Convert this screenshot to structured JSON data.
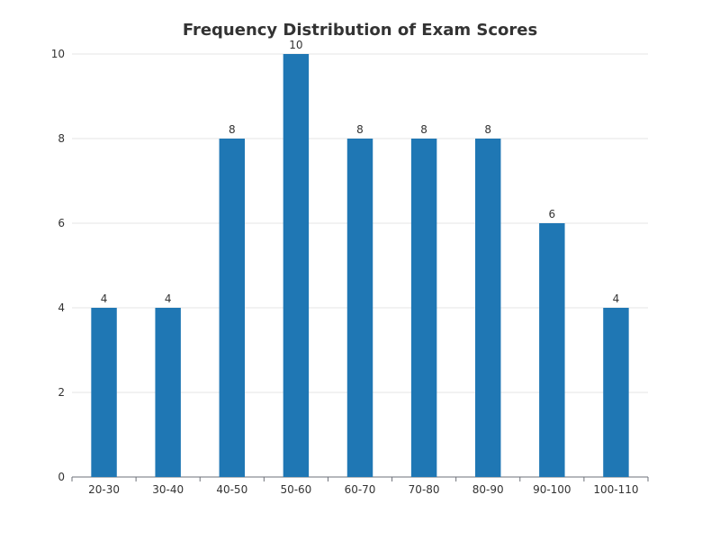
{
  "chart_data": {
    "type": "bar",
    "title": "Frequency Distribution of Exam Scores",
    "xlabel": "",
    "ylabel": "",
    "categories": [
      "20-30",
      "30-40",
      "40-50",
      "50-60",
      "60-70",
      "70-80",
      "80-90",
      "90-100",
      "100-110"
    ],
    "values": [
      4,
      4,
      8,
      10,
      8,
      8,
      8,
      6,
      4
    ],
    "ylim": [
      0,
      10
    ],
    "yticks": [
      0,
      2,
      4,
      6,
      8,
      10
    ],
    "grid": true,
    "show_data_labels": true,
    "colors": {
      "bar": "#1f77b4"
    }
  }
}
